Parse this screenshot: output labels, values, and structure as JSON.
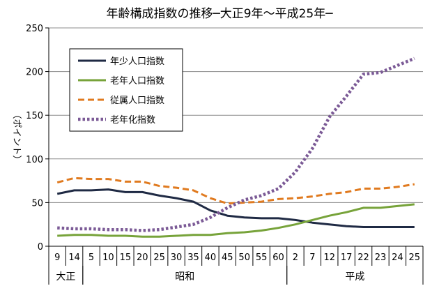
{
  "chart_data": {
    "type": "line",
    "title": "年齢構成指数の推移─大正9年～平成25年─",
    "ylabel": "（ポイント）",
    "ylim": [
      0,
      250
    ],
    "yticks": [
      0,
      50,
      100,
      150,
      200,
      250
    ],
    "grid": true,
    "legend_position": "top-left",
    "categories": [
      "9",
      "14",
      "5",
      "10",
      "15",
      "20",
      "25",
      "30",
      "35",
      "40",
      "45",
      "50",
      "55",
      "60",
      "2",
      "7",
      "12",
      "17",
      "22",
      "23",
      "24",
      "25"
    ],
    "eras": [
      {
        "label": "大正",
        "start": 0,
        "end": 1
      },
      {
        "label": "昭和",
        "start": 2,
        "end": 13
      },
      {
        "label": "平成",
        "start": 14,
        "end": 21
      }
    ],
    "series": [
      {
        "name": "年少人口指数",
        "color": "#1f2a44",
        "style": "solid",
        "values": [
          60,
          64,
          64,
          65,
          62,
          62,
          58,
          55,
          51,
          41,
          35,
          33,
          32,
          32,
          30,
          27,
          25,
          23,
          22,
          22,
          22,
          22
        ]
      },
      {
        "name": "老年人口指数",
        "color": "#77a33a",
        "style": "solid",
        "values": [
          12,
          13,
          13,
          12,
          12,
          11,
          11,
          12,
          13,
          13,
          15,
          16,
          18,
          21,
          25,
          30,
          35,
          39,
          44,
          44,
          46,
          48
        ]
      },
      {
        "name": "従属人口指数",
        "color": "#e07a1f",
        "style": "dashed",
        "values": [
          73,
          78,
          77,
          77,
          74,
          74,
          69,
          67,
          64,
          55,
          49,
          50,
          51,
          54,
          55,
          57,
          60,
          62,
          66,
          66,
          68,
          71
        ]
      },
      {
        "name": "老年化指数",
        "color": "#7b5a96",
        "style": "dotted",
        "values": [
          21,
          20,
          20,
          19,
          19,
          18,
          19,
          22,
          25,
          33,
          44,
          53,
          58,
          66,
          85,
          112,
          148,
          172,
          197,
          199,
          207,
          215
        ]
      }
    ]
  }
}
